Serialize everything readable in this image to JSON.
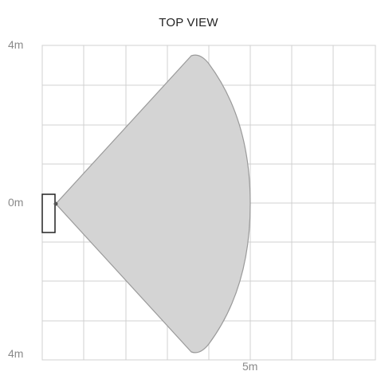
{
  "title": "TOP VIEW",
  "axis": {
    "y_top": "4m",
    "y_mid": "0m",
    "y_bottom": "4m",
    "x_label": "5m"
  },
  "colors": {
    "grid": "#d0d0d0",
    "coverage_fill": "#d4d4d4",
    "coverage_stroke": "#9a9a9a",
    "sensor_stroke": "#222222",
    "label": "#8a8a8a"
  }
}
